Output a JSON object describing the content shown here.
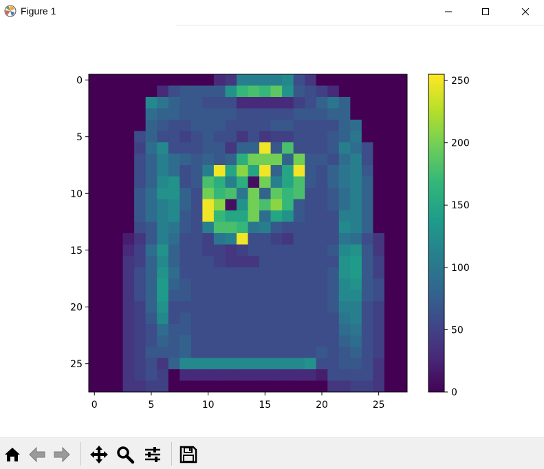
{
  "window": {
    "title": "Figure 1",
    "controls": [
      "minimize",
      "maximize",
      "close"
    ]
  },
  "chart_data": {
    "type": "heatmap",
    "colormap": "viridis",
    "colorbar_ticks": [
      "0",
      "50",
      "100",
      "150",
      "200",
      "250"
    ],
    "colorbar_range": [
      0,
      255
    ],
    "x_ticks": [
      "0",
      "5",
      "10",
      "15",
      "20",
      "25"
    ],
    "y_ticks": [
      "0",
      "5",
      "10",
      "15",
      "20",
      "25"
    ],
    "x_range": [
      -0.5,
      27.5
    ],
    "y_range": [
      -0.5,
      27.5
    ],
    "grid": false,
    "rows": [
      "0,0,0,0,0,0,0,0,0,0,0,30,40,110,110,110,110,120,60,40,0,0,0,0,0,0,0,0",
      "0,0,0,0,0,0,30,60,70,70,70,70,130,170,180,170,190,130,70,60,50,30,0,0,0,0,0,0",
      "0,0,0,0,0,120,100,80,70,70,60,60,60,30,30,30,30,30,50,60,80,100,80,0,0,0,0,0",
      "0,0,0,0,0,90,80,80,70,70,70,70,70,60,60,60,60,60,70,70,70,80,80,0,0,0,0,0",
      "0,0,0,0,0,80,70,60,60,70,70,70,60,60,60,60,70,70,60,60,60,60,80,90,0,0,0,0",
      "0,0,0,0,60,80,60,60,50,60,70,60,60,40,60,40,50,50,60,60,60,70,80,100,0,0,0,0",
      "0,0,0,0,50,90,120,60,60,60,70,70,40,80,80,250,70,180,60,60,60,70,110,90,60,0,0,0",
      "0,0,0,0,60,80,110,90,80,70,80,70,80,160,200,200,200,80,200,70,70,60,90,110,60,0,0,0",
      "0,0,0,0,60,80,110,90,60,70,110,250,150,210,150,250,80,150,250,70,60,80,100,110,70,0,0,0",
      "0,0,0,0,60,80,120,130,60,70,180,160,110,160,10,200,110,150,180,70,60,80,100,110,80,0,0,0",
      "0,0,0,0,70,90,130,130,80,60,200,170,180,100,200,80,190,170,180,60,60,70,90,110,80,0,0,0",
      "0,0,0,0,70,90,110,120,80,60,250,210,10,130,200,180,210,170,70,60,60,70,90,110,80,0,0,0",
      "0,0,0,0,70,90,110,120,70,60,250,170,150,150,200,90,150,130,70,60,60,60,110,110,80,0,0,0",
      "0,0,0,0,60,70,110,100,70,60,110,180,180,170,100,110,70,60,60,60,60,60,120,110,80,0,0,0",
      "0,0,0,20,40,70,110,90,60,60,50,100,110,250,60,60,50,40,60,60,60,60,100,90,60,40,0,0",
      "0,0,0,30,50,90,130,80,60,60,50,50,40,50,60,60,60,60,60,60,60,70,120,130,70,40,0,0",
      "0,0,0,40,50,80,120,80,60,60,60,50,40,40,40,60,60,60,60,60,60,60,130,140,70,50,0,0",
      "0,0,0,40,60,80,130,90,60,60,60,60,60,60,60,60,60,60,60,60,60,70,130,140,70,50,0,0",
      "0,0,0,40,60,80,140,80,70,60,60,60,60,60,60,60,60,60,60,60,60,70,120,130,70,60,0,0",
      "0,0,0,40,60,80,140,70,70,60,60,60,60,60,60,60,60,60,60,60,60,70,120,120,70,60,0,0",
      "0,0,0,40,50,80,130,60,60,60,60,60,60,60,60,60,60,60,60,60,60,70,110,110,60,50,0,0",
      "0,0,0,40,50,70,120,60,70,60,60,60,60,60,60,60,60,60,60,60,60,60,100,110,60,50,0,0",
      "0,0,0,40,50,60,90,70,70,60,60,60,60,60,60,60,60,60,60,60,60,60,90,100,60,50,0,0",
      "0,0,0,40,50,60,80,70,80,60,60,60,60,60,60,60,60,60,60,60,60,60,80,90,60,50,0,0",
      "0,0,0,40,50,70,70,70,80,60,60,60,60,60,60,60,60,60,60,60,70,60,70,80,60,50,0,0",
      "0,0,0,40,50,60,40,80,120,120,120,120,120,120,120,120,120,120,120,130,60,60,70,70,60,40,0,0",
      "0,0,0,40,50,60,50,0,30,30,30,30,30,30,30,30,30,30,30,30,20,60,60,60,60,40,0,0",
      "0,0,0,40,40,50,50,0,0,0,0,0,0,0,0,0,0,0,0,0,0,40,40,50,50,40,0,0"
    ]
  },
  "toolbar": {
    "buttons": [
      "home-icon",
      "back-icon",
      "forward-icon",
      "pan-icon",
      "zoom-icon",
      "configure-icon",
      "save-icon"
    ]
  },
  "colors": {
    "toolbar_bg": "#f0f0f0",
    "axis": "#000000"
  }
}
